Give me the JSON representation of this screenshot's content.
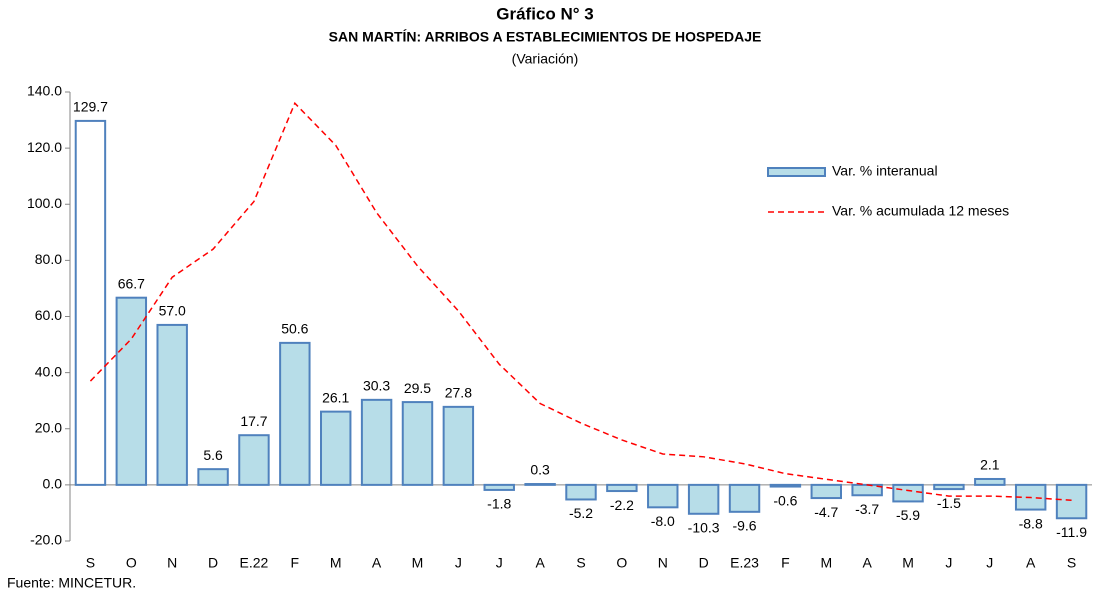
{
  "chart_data": {
    "type": "bar",
    "title": "Gráfico N° 3",
    "subtitle": "SAN MARTÍN: ARRIBOS A ESTABLECIMIENTOS DE HOSPEDAJE",
    "subtitle2": "(Variación)",
    "source": "Fuente: MINCETUR.",
    "categories": [
      "S",
      "O",
      "N",
      "D",
      "E.22",
      "F",
      "M",
      "A",
      "M",
      "J",
      "J",
      "A",
      "S",
      "O",
      "N",
      "D",
      "E.23",
      "F",
      "M",
      "A",
      "M",
      "J",
      "J",
      "A",
      "S"
    ],
    "series": [
      {
        "name": "Var. % interanual",
        "type": "bar",
        "color": "#b7dde8",
        "edge_color": "#4f81bd",
        "colors": [
          "#ffffff",
          "#b7dde8",
          "#b7dde8",
          "#b7dde8",
          "#b7dde8",
          "#b7dde8",
          "#b7dde8",
          "#b7dde8",
          "#b7dde8",
          "#b7dde8",
          "#b7dde8",
          "#b7dde8",
          "#b7dde8",
          "#b7dde8",
          "#b7dde8",
          "#b7dde8",
          "#b7dde8",
          "#b7dde8",
          "#b7dde8",
          "#b7dde8",
          "#b7dde8",
          "#b7dde8",
          "#b7dde8",
          "#b7dde8",
          "#b7dde8"
        ],
        "values": [
          129.7,
          66.7,
          57.0,
          5.6,
          17.7,
          50.6,
          26.1,
          30.3,
          29.5,
          27.8,
          -1.8,
          0.3,
          -5.2,
          -2.2,
          -8.0,
          -10.3,
          -9.6,
          -0.6,
          -4.7,
          -3.7,
          -5.9,
          -1.5,
          2.1,
          -8.8,
          -11.9
        ],
        "value_labels": [
          "129.7",
          "66.7",
          "57.0",
          "5.6",
          "17.7",
          "50.6",
          "26.1",
          "30.3",
          "29.5",
          "27.8",
          "-1.8",
          "0.3",
          "-5.2",
          "-2.2",
          "-8.0",
          "-10.3",
          "-9.6",
          "-0.6",
          "-4.7",
          "-3.7",
          "-5.9",
          "-1.5",
          "2.1",
          "-8.8",
          "-11.9"
        ]
      },
      {
        "name": "Var. % acumulada 12 meses",
        "type": "line",
        "color": "#ff0000",
        "dashed": true,
        "values": [
          37,
          52,
          74,
          84,
          101,
          136,
          121,
          97,
          78,
          62,
          43,
          29,
          22,
          16,
          11,
          10,
          7.5,
          4,
          2,
          0,
          -2,
          -4,
          -4,
          -4.5,
          -5.5
        ]
      }
    ],
    "ylim": [
      -20,
      140
    ],
    "yticks": [
      {
        "value": -20,
        "label": "-20.0"
      },
      {
        "value": 0,
        "label": "0.0"
      },
      {
        "value": 20,
        "label": "20.0"
      },
      {
        "value": 40,
        "label": "40.0"
      },
      {
        "value": 60,
        "label": "60.0"
      },
      {
        "value": 80,
        "label": "80.0"
      },
      {
        "value": 100,
        "label": "100.0"
      },
      {
        "value": 120,
        "label": "120.0"
      },
      {
        "value": 140,
        "label": "140.0"
      }
    ],
    "grid": false,
    "legend": "upper right"
  }
}
